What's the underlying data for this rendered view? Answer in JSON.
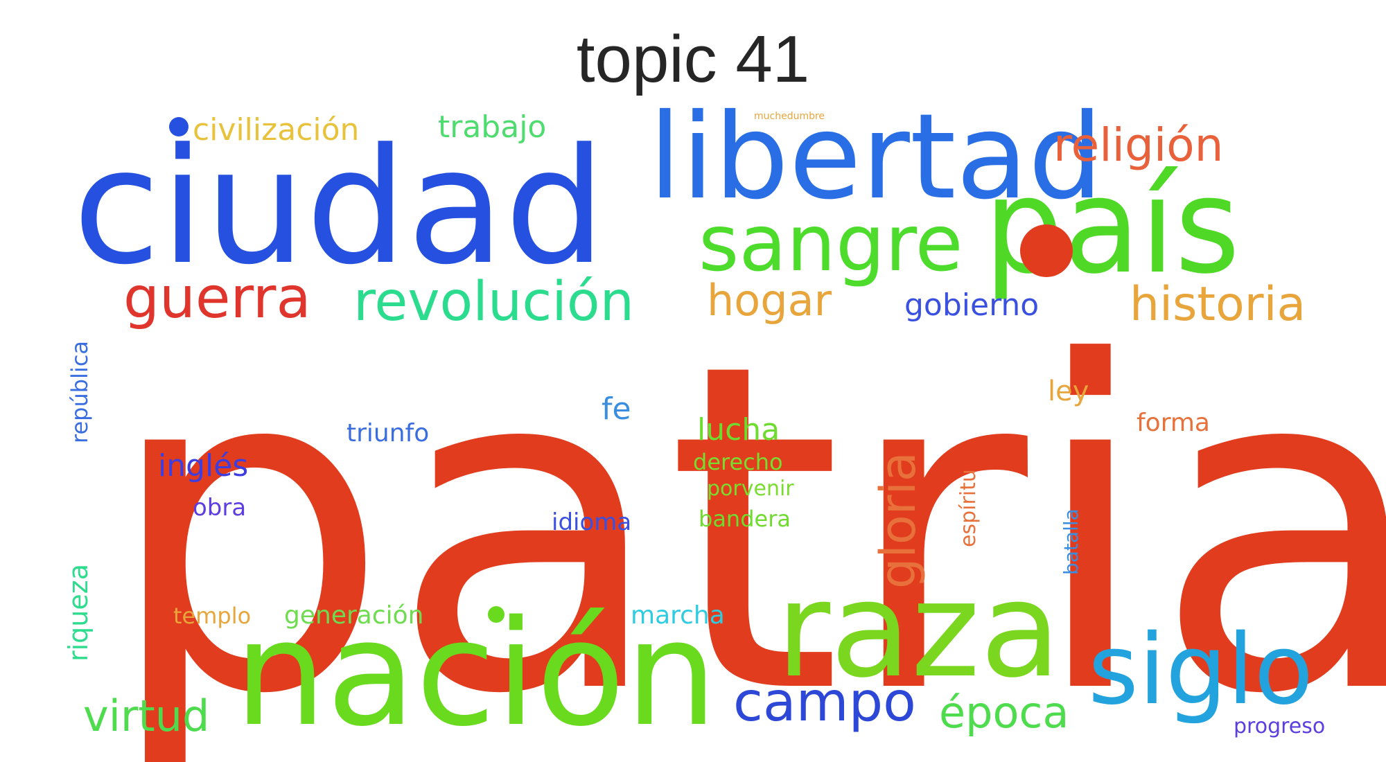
{
  "title": "topic 41",
  "words": [
    {
      "text": "patria",
      "color": "#e23c1f"
    },
    {
      "text": "ciudad",
      "color": "#2650e0"
    },
    {
      "text": "libertad",
      "color": "#2a6ee6"
    },
    {
      "text": "país",
      "color": "#4fd926"
    },
    {
      "text": "nación",
      "color": "#6ada1f"
    },
    {
      "text": "raza",
      "color": "#7ad61e"
    },
    {
      "text": "sangre",
      "color": "#4edc2c"
    },
    {
      "text": "siglo",
      "color": "#22a3dd"
    },
    {
      "text": "guerra",
      "color": "#e0352c"
    },
    {
      "text": "revolución",
      "color": "#2bdc8e"
    },
    {
      "text": "religión",
      "color": "#e8613b"
    },
    {
      "text": "historia",
      "color": "#e8a53b"
    },
    {
      "text": "hogar",
      "color": "#e8a53b"
    },
    {
      "text": "campo",
      "color": "#2d48d6"
    },
    {
      "text": "época",
      "color": "#4edc4e"
    },
    {
      "text": "virtud",
      "color": "#4edc4e"
    },
    {
      "text": "gloria",
      "color": "#e8703b"
    },
    {
      "text": "gobierno",
      "color": "#3a50e0"
    },
    {
      "text": "civilización",
      "color": "#e8c23b"
    },
    {
      "text": "trabajo",
      "color": "#4edc6e"
    },
    {
      "text": "inglés",
      "color": "#3c3ee0"
    },
    {
      "text": "lucha",
      "color": "#6edc2e"
    },
    {
      "text": "fe",
      "color": "#3a8ee0"
    },
    {
      "text": "triunfo",
      "color": "#3a6ee0"
    },
    {
      "text": "república",
      "color": "#3a6ee0"
    },
    {
      "text": "riqueza",
      "color": "#2edc8e"
    },
    {
      "text": "ley",
      "color": "#e8a53b"
    },
    {
      "text": "forma",
      "color": "#e8703b"
    },
    {
      "text": "derecho",
      "color": "#7adc2e"
    },
    {
      "text": "porvenir",
      "color": "#7adc2e"
    },
    {
      "text": "bandera",
      "color": "#6edc2e"
    },
    {
      "text": "obra",
      "color": "#5c3ee0"
    },
    {
      "text": "idioma",
      "color": "#3a50e0"
    },
    {
      "text": "espíritu",
      "color": "#e8703b"
    },
    {
      "text": "batalla",
      "color": "#3a8ee0"
    },
    {
      "text": "templo",
      "color": "#e8a53b"
    },
    {
      "text": "generación",
      "color": "#6edc4e"
    },
    {
      "text": "marcha",
      "color": "#2ecce0"
    },
    {
      "text": "progreso",
      "color": "#5c3ee0"
    },
    {
      "text": "muchedumbre",
      "color": "#e8a53b"
    }
  ]
}
